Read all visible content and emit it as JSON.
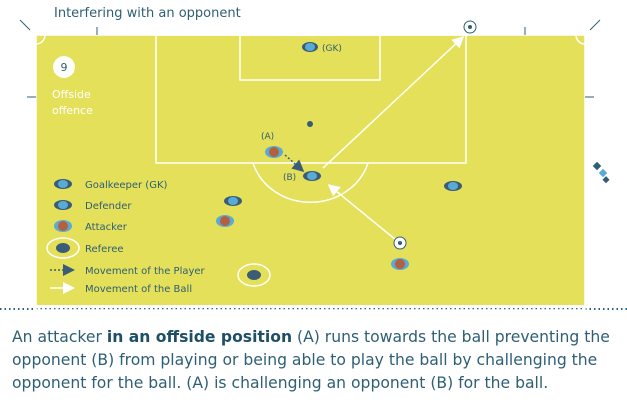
{
  "title": "Interfering with an opponent",
  "badge_number": "9",
  "section_label": [
    "Offside",
    "offence"
  ],
  "labels": {
    "goalkeeper": "(GK)",
    "attacker": "(A)",
    "defender": "(B)"
  },
  "legend": [
    {
      "icon": "goalkeeper-icon",
      "label": "Goalkeeper (GK)"
    },
    {
      "icon": "defender-icon",
      "label": "Defender"
    },
    {
      "icon": "attacker-icon",
      "label": "Attacker"
    },
    {
      "icon": "referee-icon",
      "label": "Referee"
    },
    {
      "icon": "player-movement-arrow-icon",
      "label": "Movement of the Player"
    },
    {
      "icon": "ball-movement-arrow-icon",
      "label": "Movement of the Ball"
    }
  ],
  "caption": {
    "part1": "An attacker ",
    "bold": "in an offside position",
    "part2": " (A) runs towards the ball preventing the opponent (B) from playing or being able to play the ball by challenging the opponent for the ball. (A) is challenging an opponent (B) for the ball."
  },
  "colors": {
    "pitch": "#e4e05a",
    "lines": "#ffffff",
    "goalkeeper": "#3a5c76",
    "defender": "#5aaad6",
    "attacker": "#b3603f",
    "text": "#2e5f74"
  }
}
